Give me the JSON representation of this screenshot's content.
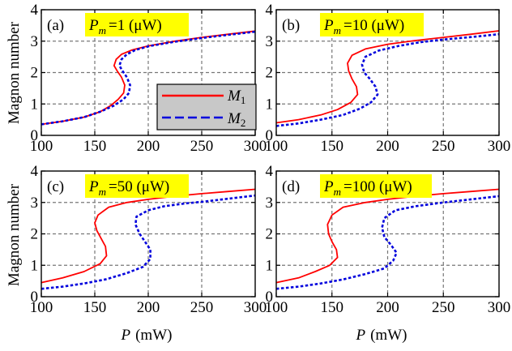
{
  "axis_labels": {
    "ylabel": "Magnon number",
    "xlabel_var": "P",
    "xlabel_unit": "(mW)"
  },
  "legend": [
    {
      "var": "M",
      "sub": "1"
    },
    {
      "var": "M",
      "sub": "2"
    }
  ],
  "chart_data": [
    {
      "type": "line",
      "panel_label": "(a)",
      "title_var": "P",
      "title_sub": "m",
      "title_value": "=1 (μW)",
      "xlim": [
        100,
        300
      ],
      "ylim": [
        0,
        4
      ],
      "xticks": [
        100,
        150,
        200,
        250,
        300
      ],
      "yticks": [
        0,
        1,
        2,
        3,
        4
      ],
      "grid": true,
      "legend_position": "lower-right",
      "series": [
        {
          "name": "M1",
          "color": "#ff0000",
          "style": "solid",
          "points": [
            [
              100,
              0.35
            ],
            [
              120,
              0.45
            ],
            [
              140,
              0.58
            ],
            [
              155,
              0.75
            ],
            [
              165,
              0.95
            ],
            [
              172,
              1.15
            ],
            [
              177,
              1.35
            ],
            [
              178,
              1.6
            ],
            [
              175,
              1.85
            ],
            [
              171,
              2.05
            ],
            [
              168,
              2.22
            ],
            [
              170,
              2.42
            ],
            [
              175,
              2.58
            ],
            [
              185,
              2.72
            ],
            [
              200,
              2.85
            ],
            [
              225,
              3.0
            ],
            [
              250,
              3.12
            ],
            [
              275,
              3.22
            ],
            [
              300,
              3.32
            ]
          ]
        },
        {
          "name": "M2",
          "color": "#0000dd",
          "style": "dashed",
          "points": [
            [
              100,
              0.35
            ],
            [
              120,
              0.45
            ],
            [
              140,
              0.58
            ],
            [
              155,
              0.75
            ],
            [
              168,
              0.95
            ],
            [
              177,
              1.15
            ],
            [
              182,
              1.35
            ],
            [
              183,
              1.6
            ],
            [
              180,
              1.85
            ],
            [
              176,
              2.05
            ],
            [
              173,
              2.22
            ],
            [
              175,
              2.42
            ],
            [
              180,
              2.58
            ],
            [
              188,
              2.72
            ],
            [
              202,
              2.85
            ],
            [
              225,
              2.98
            ],
            [
              250,
              3.1
            ],
            [
              275,
              3.2
            ],
            [
              300,
              3.3
            ]
          ]
        }
      ]
    },
    {
      "type": "line",
      "panel_label": "(b)",
      "title_var": "P",
      "title_sub": "m",
      "title_value": "=10 (μW)",
      "xlim": [
        100,
        300
      ],
      "ylim": [
        0,
        4
      ],
      "xticks": [
        100,
        150,
        200,
        250,
        300
      ],
      "yticks": [
        0,
        1,
        2,
        3,
        4
      ],
      "grid": true,
      "series": [
        {
          "name": "M1",
          "color": "#ff0000",
          "style": "solid",
          "points": [
            [
              100,
              0.4
            ],
            [
              120,
              0.5
            ],
            [
              140,
              0.65
            ],
            [
              155,
              0.82
            ],
            [
              167,
              1.05
            ],
            [
              173,
              1.3
            ],
            [
              172,
              1.55
            ],
            [
              168,
              1.8
            ],
            [
              165,
              2.05
            ],
            [
              164,
              2.3
            ],
            [
              168,
              2.55
            ],
            [
              180,
              2.75
            ],
            [
              200,
              2.9
            ],
            [
              225,
              3.02
            ],
            [
              250,
              3.12
            ],
            [
              275,
              3.22
            ],
            [
              300,
              3.33
            ]
          ]
        },
        {
          "name": "M2",
          "color": "#0000dd",
          "style": "dashed",
          "points": [
            [
              100,
              0.3
            ],
            [
              120,
              0.38
            ],
            [
              140,
              0.5
            ],
            [
              160,
              0.65
            ],
            [
              175,
              0.85
            ],
            [
              185,
              1.05
            ],
            [
              191,
              1.3
            ],
            [
              189,
              1.55
            ],
            [
              184,
              1.8
            ],
            [
              179,
              2.0
            ],
            [
              177,
              2.25
            ],
            [
              180,
              2.5
            ],
            [
              192,
              2.7
            ],
            [
              210,
              2.85
            ],
            [
              230,
              2.97
            ],
            [
              250,
              3.05
            ],
            [
              275,
              3.13
            ],
            [
              300,
              3.22
            ]
          ]
        }
      ]
    },
    {
      "type": "line",
      "panel_label": "(c)",
      "title_var": "P",
      "title_sub": "m",
      "title_value": "=50 (μW)",
      "xlim": [
        100,
        300
      ],
      "ylim": [
        0,
        4
      ],
      "xticks": [
        100,
        150,
        200,
        250,
        300
      ],
      "yticks": [
        0,
        1,
        2,
        3,
        4
      ],
      "grid": true,
      "series": [
        {
          "name": "M1",
          "color": "#ff0000",
          "style": "solid",
          "points": [
            [
              100,
              0.45
            ],
            [
              120,
              0.6
            ],
            [
              140,
              0.8
            ],
            [
              155,
              1.05
            ],
            [
              161,
              1.3
            ],
            [
              160,
              1.6
            ],
            [
              156,
              1.85
            ],
            [
              152,
              2.1
            ],
            [
              150,
              2.35
            ],
            [
              153,
              2.6
            ],
            [
              163,
              2.85
            ],
            [
              180,
              3.0
            ],
            [
              200,
              3.1
            ],
            [
              225,
              3.2
            ],
            [
              250,
              3.28
            ],
            [
              275,
              3.35
            ],
            [
              300,
              3.42
            ]
          ]
        },
        {
          "name": "M2",
          "color": "#0000dd",
          "style": "dashed",
          "points": [
            [
              100,
              0.25
            ],
            [
              120,
              0.32
            ],
            [
              140,
              0.42
            ],
            [
              160,
              0.55
            ],
            [
              180,
              0.75
            ],
            [
              195,
              0.95
            ],
            [
              202,
              1.2
            ],
            [
              202,
              1.5
            ],
            [
              197,
              1.75
            ],
            [
              192,
              2.0
            ],
            [
              188,
              2.3
            ],
            [
              189,
              2.55
            ],
            [
              200,
              2.75
            ],
            [
              215,
              2.88
            ],
            [
              235,
              2.97
            ],
            [
              250,
              3.02
            ],
            [
              275,
              3.12
            ],
            [
              300,
              3.22
            ]
          ]
        }
      ]
    },
    {
      "type": "line",
      "panel_label": "(d)",
      "title_var": "P",
      "title_sub": "m",
      "title_value": "=100 (μW)",
      "xlim": [
        100,
        300
      ],
      "ylim": [
        0,
        4
      ],
      "xticks": [
        100,
        150,
        200,
        250,
        300
      ],
      "yticks": [
        0,
        1,
        2,
        3,
        4
      ],
      "grid": true,
      "series": [
        {
          "name": "M1",
          "color": "#ff0000",
          "style": "solid",
          "points": [
            [
              100,
              0.45
            ],
            [
              120,
              0.6
            ],
            [
              135,
              0.8
            ],
            [
              148,
              1.0
            ],
            [
              155,
              1.25
            ],
            [
              154,
              1.5
            ],
            [
              150,
              1.75
            ],
            [
              147,
              2.0
            ],
            [
              146,
              2.3
            ],
            [
              150,
              2.6
            ],
            [
              160,
              2.85
            ],
            [
              180,
              3.0
            ],
            [
              200,
              3.1
            ],
            [
              225,
              3.2
            ],
            [
              250,
              3.28
            ],
            [
              275,
              3.35
            ],
            [
              300,
              3.42
            ]
          ]
        },
        {
          "name": "M2",
          "color": "#0000dd",
          "style": "dashed",
          "points": [
            [
              100,
              0.25
            ],
            [
              120,
              0.32
            ],
            [
              140,
              0.42
            ],
            [
              160,
              0.55
            ],
            [
              180,
              0.72
            ],
            [
              197,
              0.9
            ],
            [
              205,
              1.15
            ],
            [
              208,
              1.4
            ],
            [
              203,
              1.65
            ],
            [
              197,
              1.9
            ],
            [
              195,
              2.2
            ],
            [
              197,
              2.5
            ],
            [
              207,
              2.75
            ],
            [
              225,
              2.88
            ],
            [
              250,
              3.0
            ],
            [
              275,
              3.1
            ],
            [
              300,
              3.2
            ]
          ]
        }
      ]
    }
  ]
}
